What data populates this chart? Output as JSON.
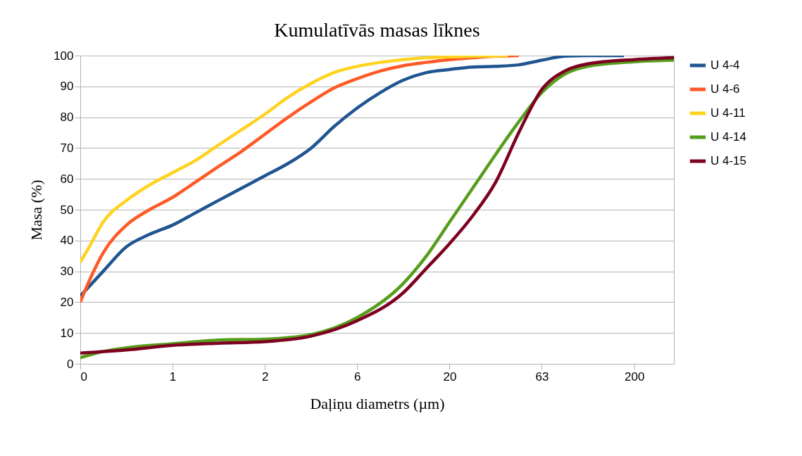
{
  "chart_data": {
    "type": "line",
    "title": "Kumulatīvās masas līknes",
    "xlabel": "Daļiņu diametrs (µm)",
    "ylabel": "Masa (%)",
    "xlim": [
      0.2,
      328
    ],
    "log": "x",
    "xticks": [
      {
        "value": 0.2,
        "label": "0"
      },
      {
        "value": 0.632,
        "label": "1"
      },
      2,
      {
        "value": 6.32,
        "label": "6"
      },
      20,
      {
        "value": 63.2,
        "label": "63"
      },
      200
    ],
    "ylim": [
      0,
      100
    ],
    "yticks": [
      0,
      10,
      20,
      30,
      40,
      50,
      60,
      70,
      80,
      90,
      100
    ],
    "grid": "y",
    "legend": "right",
    "marker": "none",
    "line_style": "solid",
    "series": [
      {
        "name": "U 4-4",
        "color": "#1f5591",
        "x": [
          0.2,
          0.266,
          0.356,
          0.474,
          0.632,
          0.843,
          1.12,
          1.5,
          2,
          2.67,
          3.56,
          4.74,
          6.32,
          8.43,
          11.2,
          15.0,
          20,
          26.7,
          35.6,
          47.4,
          63.2,
          84.3,
          112,
          176
        ],
        "values": [
          22,
          30,
          38,
          42,
          45,
          49,
          53,
          57,
          61,
          65,
          70,
          77,
          83,
          88,
          92,
          94.5,
          95.5,
          96.3,
          96.5,
          97,
          98.5,
          99.8,
          100,
          100
        ]
      },
      {
        "name": "U 4-6",
        "color": "#ff5a25",
        "x": [
          0.2,
          0.224,
          0.266,
          0.356,
          0.474,
          0.632,
          0.843,
          1.12,
          1.5,
          2,
          2.67,
          3.56,
          4.74,
          6.32,
          8.43,
          11.2,
          15.0,
          20,
          26.7,
          35.6,
          47.4
        ],
        "values": [
          20,
          27,
          36,
          45,
          50,
          54,
          59,
          64,
          69,
          74.5,
          80,
          85,
          89.5,
          92.5,
          95,
          96.7,
          97.8,
          98.7,
          99.3,
          99.8,
          100
        ]
      },
      {
        "name": "U 4-11",
        "color": "#ffd320",
        "x": [
          0.2,
          0.224,
          0.266,
          0.356,
          0.474,
          0.632,
          0.843,
          1.12,
          1.5,
          2,
          2.67,
          3.56,
          4.74,
          6.32,
          8.43,
          11.2,
          15.0,
          20,
          35.6,
          41.3
        ],
        "values": [
          33,
          38,
          46,
          53,
          58,
          62,
          66,
          71,
          76,
          81,
          86.5,
          91,
          94.5,
          96.5,
          97.8,
          98.7,
          99.3,
          99.6,
          99.9,
          100
        ]
      },
      {
        "name": "U 4-14",
        "color": "#579d1c",
        "x": [
          0.2,
          0.266,
          0.356,
          0.632,
          1.12,
          2,
          3.56,
          6.32,
          11.2,
          15.0,
          20,
          26.7,
          35.6,
          47.4,
          63.2,
          84.3,
          112,
          200,
          328
        ],
        "values": [
          2,
          4,
          5.2,
          6.5,
          7.7,
          8,
          9.5,
          15,
          26,
          35,
          46,
          57,
          68,
          78.5,
          88,
          94,
          96.5,
          98,
          98.5
        ]
      },
      {
        "name": "U 4-15",
        "color": "#7e0021",
        "x": [
          0.2,
          0.356,
          0.632,
          1.12,
          2,
          3.56,
          6.32,
          11.2,
          15.0,
          20,
          26.7,
          35.6,
          47.4,
          63.2,
          84.3,
          112,
          200,
          328
        ],
        "values": [
          3.5,
          4.5,
          6,
          6.7,
          7.2,
          9,
          14,
          23,
          31,
          39,
          48,
          59,
          75,
          89,
          95,
          97.3,
          98.7,
          99.3
        ]
      }
    ]
  }
}
